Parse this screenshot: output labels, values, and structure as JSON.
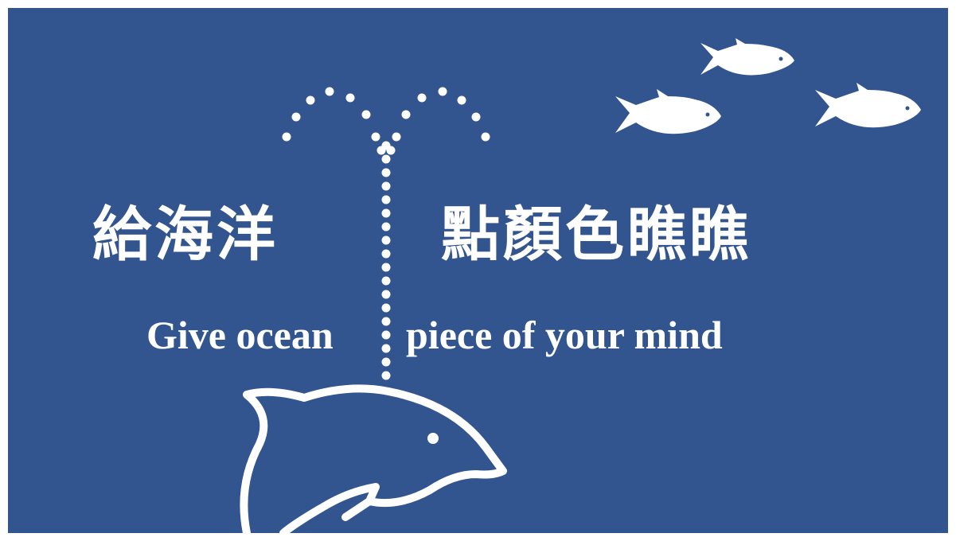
{
  "banner": {
    "title_zh_left": "給海洋",
    "title_zh_right": "點顏色瞧瞧",
    "title_en_left": "Give ocean",
    "title_en_right": "piece of your mind"
  },
  "colors": {
    "background": "#32548f",
    "foreground": "#ffffff",
    "page": "#ffffff"
  },
  "icons": [
    "dolphin-icon",
    "water-spout-dots",
    "fish-icon",
    "fish-icon",
    "fish-icon"
  ]
}
